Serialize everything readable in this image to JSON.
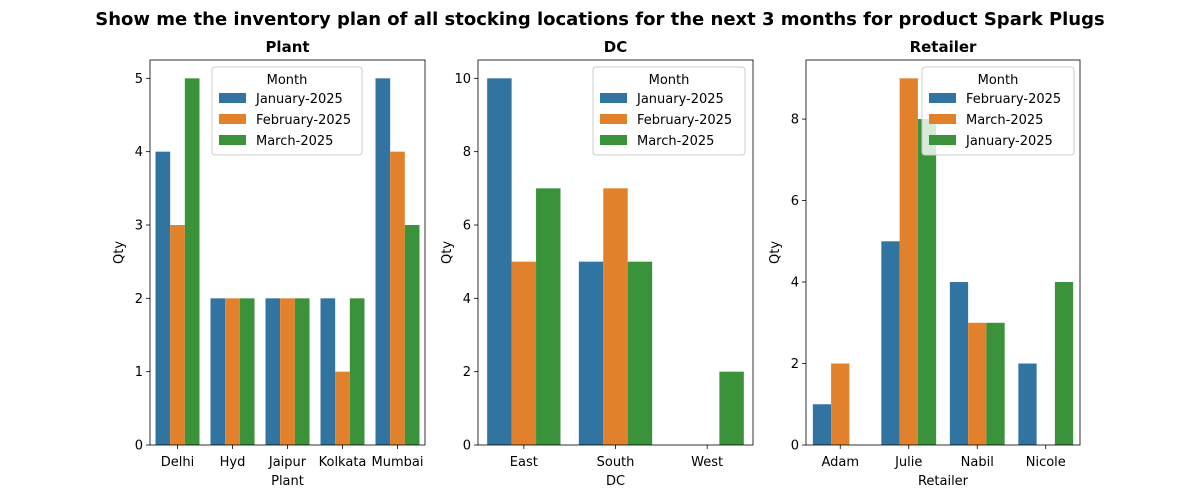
{
  "suptitle": "Show me the inventory plan of all stocking locations for the next 3 months for product Spark Plugs",
  "colors": {
    "blue": "#3274a1",
    "orange": "#e1812c",
    "green": "#3a923a"
  },
  "chart_data": [
    {
      "type": "bar",
      "title": "Plant",
      "xlabel": "Plant",
      "ylabel": "Qty",
      "ylim": [
        0,
        5.25
      ],
      "yticks": [
        0,
        1,
        2,
        3,
        4,
        5
      ],
      "categories": [
        "Delhi",
        "Hyd",
        "Jaipur",
        "Kolkata",
        "Mumbai"
      ],
      "legend_title": "Month",
      "legend_position": "top-center",
      "series": [
        {
          "name": "January-2025",
          "color": "#3274a1",
          "values": [
            4,
            2,
            2,
            2,
            5
          ]
        },
        {
          "name": "February-2025",
          "color": "#e1812c",
          "values": [
            3,
            2,
            2,
            1,
            4
          ]
        },
        {
          "name": "March-2025",
          "color": "#3a923a",
          "values": [
            5,
            2,
            2,
            2,
            3
          ]
        }
      ]
    },
    {
      "type": "bar",
      "title": "DC",
      "xlabel": "DC",
      "ylabel": "Qty",
      "ylim": [
        0,
        10.5
      ],
      "yticks": [
        0,
        2,
        4,
        6,
        8,
        10
      ],
      "categories": [
        "East",
        "South",
        "West"
      ],
      "legend_title": "Month",
      "legend_position": "upper-right",
      "series": [
        {
          "name": "January-2025",
          "color": "#3274a1",
          "values": [
            10,
            5,
            null
          ]
        },
        {
          "name": "February-2025",
          "color": "#e1812c",
          "values": [
            5,
            7,
            null
          ]
        },
        {
          "name": "March-2025",
          "color": "#3a923a",
          "values": [
            7,
            5,
            2
          ]
        }
      ]
    },
    {
      "type": "bar",
      "title": "Retailer",
      "xlabel": "Retailer",
      "ylabel": "Qty",
      "ylim": [
        0,
        9.45
      ],
      "yticks": [
        0,
        2,
        4,
        6,
        8
      ],
      "categories": [
        "Adam",
        "Julie",
        "Nabil",
        "Nicole"
      ],
      "legend_title": "Month",
      "legend_position": "upper-right",
      "series": [
        {
          "name": "February-2025",
          "color": "#3274a1",
          "values": [
            1,
            5,
            4,
            2
          ]
        },
        {
          "name": "March-2025",
          "color": "#e1812c",
          "values": [
            2,
            9,
            3,
            null
          ]
        },
        {
          "name": "January-2025",
          "color": "#3a923a",
          "values": [
            null,
            8,
            3,
            4
          ]
        }
      ]
    }
  ]
}
